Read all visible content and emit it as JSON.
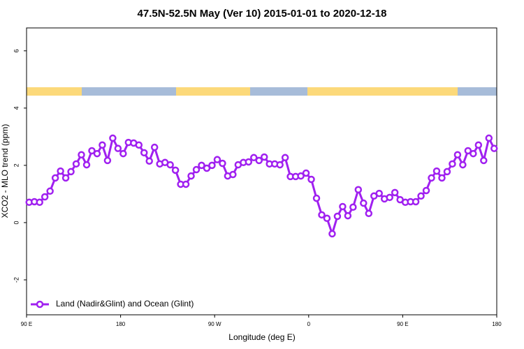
{
  "chart_data": {
    "type": "line",
    "title": "47.5N-52.5N May (Ver 10)   2015-01-01 to 2020-12-18",
    "x_label": "Longitude (deg E)",
    "y_label": "XCO2 - MLO trend (ppm)",
    "xlim": [
      90,
      540
    ],
    "ylim": [
      -3.22,
      6.8
    ],
    "xticks": [
      {
        "value": 90,
        "label": "90 E"
      },
      180,
      {
        "value": 270,
        "label": "90 W"
      },
      {
        "value": 360,
        "label": "0"
      },
      {
        "value": 450,
        "label": "90 E"
      },
      {
        "value": 540,
        "label": "180"
      }
    ],
    "yticks": [
      -2,
      0,
      2,
      4,
      6
    ],
    "legend": "bottom-left",
    "x": [
      92.5,
      97.5,
      102.5,
      107.5,
      112.5,
      117.5,
      122.5,
      127.5,
      132.5,
      137.5,
      142.5,
      147.5,
      152.5,
      157.5,
      162.5,
      167.5,
      172.5,
      177.5,
      182.5,
      187.5,
      192.5,
      197.5,
      202.5,
      207.5,
      212.5,
      217.5,
      222.5,
      227.5,
      232.5,
      237.5,
      242.5,
      247.5,
      252.5,
      257.5,
      262.5,
      267.5,
      272.5,
      277.5,
      282.5,
      287.5,
      292.5,
      297.5,
      302.5,
      307.5,
      312.5,
      317.5,
      322.5,
      327.5,
      332.5,
      337.5,
      342.5,
      347.5,
      352.5,
      357.5,
      362.5,
      367.5,
      372.5,
      377.5,
      382.5,
      387.5,
      392.5,
      397.5,
      402.5,
      407.5,
      412.5,
      417.5,
      422.5,
      427.5,
      432.5,
      437.5,
      442.5,
      447.5,
      452.5,
      457.5,
      462.5,
      467.5,
      472.5,
      477.5,
      482.5,
      487.5,
      492.5,
      497.5,
      502.5,
      507.5,
      512.5,
      517.5,
      522.5,
      527.5,
      532.5,
      537.5
    ],
    "series": [
      {
        "name": "Land (Nadir&Glint) and Ocean (Glint)",
        "color": "#a020f0",
        "values": [
          0.71,
          0.73,
          0.71,
          0.9,
          1.1,
          1.56,
          1.8,
          1.56,
          1.78,
          2.05,
          2.37,
          2.02,
          2.51,
          2.41,
          2.71,
          2.17,
          2.95,
          2.59,
          2.41,
          2.8,
          2.78,
          2.71,
          2.44,
          2.15,
          2.63,
          2.05,
          2.1,
          2.02,
          1.83,
          1.34,
          1.34,
          1.63,
          1.85,
          2.0,
          1.9,
          2.0,
          2.2,
          2.07,
          1.63,
          1.68,
          2.02,
          2.1,
          2.12,
          2.27,
          2.17,
          2.29,
          2.05,
          2.05,
          2.02,
          2.27,
          1.61,
          1.61,
          1.63,
          1.73,
          1.51,
          0.85,
          0.27,
          0.15,
          -0.39,
          0.22,
          0.56,
          0.24,
          0.54,
          1.15,
          0.68,
          0.32,
          0.93,
          1.02,
          0.83,
          0.88,
          1.05,
          0.8,
          0.71,
          0.73,
          0.73,
          0.93,
          1.12,
          1.56,
          1.8,
          1.56,
          1.78,
          2.05,
          2.37,
          2.02,
          2.51,
          2.41,
          2.71,
          2.17,
          2.95,
          2.59
        ]
      }
    ]
  }
}
